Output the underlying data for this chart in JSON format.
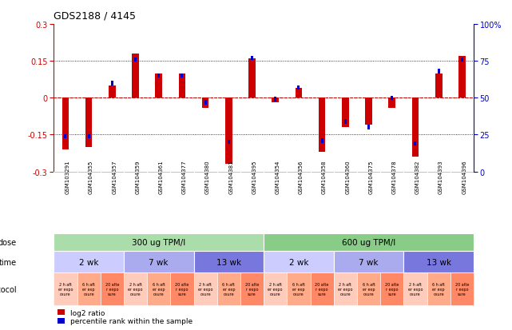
{
  "title": "GDS2188 / 4145",
  "samples": [
    "GSM103291",
    "GSM104355",
    "GSM104357",
    "GSM104359",
    "GSM104361",
    "GSM104377",
    "GSM104380",
    "GSM104381",
    "GSM104395",
    "GSM104354",
    "GSM104356",
    "GSM104358",
    "GSM104360",
    "GSM104375",
    "GSM104378",
    "GSM104382",
    "GSM104393",
    "GSM104396"
  ],
  "log2_ratio": [
    -0.21,
    -0.2,
    0.05,
    0.18,
    0.1,
    0.1,
    -0.04,
    -0.27,
    0.16,
    -0.02,
    0.04,
    -0.22,
    -0.12,
    -0.11,
    -0.04,
    -0.24,
    0.1,
    0.17
  ],
  "percentile": [
    24,
    24,
    60,
    76,
    65,
    65,
    47,
    20,
    77,
    49,
    57,
    21,
    34,
    30,
    50,
    19,
    68,
    76
  ],
  "bar_color": "#cc0000",
  "dot_color": "#0000cc",
  "ylim_left": [
    -0.3,
    0.3
  ],
  "ylim_right": [
    0,
    100
  ],
  "yticks_left": [
    -0.15,
    0.0,
    0.15
  ],
  "ytick_labels_left": [
    "-0.15",
    "0",
    "0.15"
  ],
  "yticks_right": [
    0,
    25,
    50,
    75,
    100
  ],
  "ytick_labels_right": [
    "0",
    "25",
    "50",
    "75",
    "100%"
  ],
  "dose_groups": [
    {
      "label": "300 ug TPM/l",
      "start": 0,
      "end": 9,
      "color": "#aaddaa"
    },
    {
      "label": "600 ug TPM/l",
      "start": 9,
      "end": 18,
      "color": "#88cc88"
    }
  ],
  "time_groups": [
    {
      "label": "2 wk",
      "start": 0,
      "end": 3,
      "color": "#ccccff"
    },
    {
      "label": "7 wk",
      "start": 3,
      "end": 6,
      "color": "#aaaaee"
    },
    {
      "label": "13 wk",
      "start": 6,
      "end": 9,
      "color": "#7777dd"
    },
    {
      "label": "2 wk",
      "start": 9,
      "end": 12,
      "color": "#ccccff"
    },
    {
      "label": "7 wk",
      "start": 12,
      "end": 15,
      "color": "#aaaaee"
    },
    {
      "label": "13 wk",
      "start": 15,
      "end": 18,
      "color": "#7777dd"
    }
  ],
  "protocol_colors": [
    "#ffccbb",
    "#ffaa88",
    "#ff8866"
  ],
  "protocol_labels": [
    "2 h aft\ner expo\nosure",
    "6 h aft\ner exp\nosure",
    "20 afte\nr expo\nsure"
  ],
  "legend_bar_color": "#cc0000",
  "legend_dot_color": "#0000cc",
  "legend_text1": "log2 ratio",
  "legend_text2": "percentile rank within the sample",
  "bg_color": "#ffffff",
  "plot_bg_color": "#ffffff",
  "axis_color": "#cc0000",
  "right_axis_color": "#0000cc",
  "sample_bg_color": "#cccccc"
}
